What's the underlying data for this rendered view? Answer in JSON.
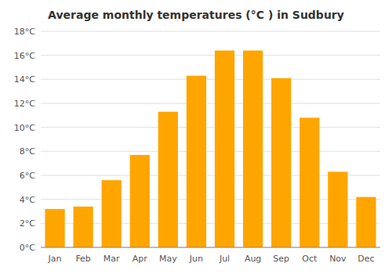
{
  "chart_data": {
    "type": "bar",
    "title": "Average monthly temperatures (°C ) in Sudbury",
    "categories": [
      "Jan",
      "Feb",
      "Mar",
      "Apr",
      "May",
      "Jun",
      "Jul",
      "Aug",
      "Sep",
      "Oct",
      "Nov",
      "Dec"
    ],
    "values": [
      3.2,
      3.4,
      5.6,
      7.7,
      11.3,
      14.3,
      16.4,
      16.4,
      14.1,
      10.8,
      6.3,
      4.2
    ],
    "color": "#FFA500",
    "ylim": [
      0,
      18
    ],
    "yticks": [
      {
        "value": 0,
        "label": "0°C"
      },
      {
        "value": 2,
        "label": "2°C"
      },
      {
        "value": 4,
        "label": "4°C"
      },
      {
        "value": 6,
        "label": "6°C"
      },
      {
        "value": 8,
        "label": "8°C"
      },
      {
        "value": 10,
        "label": "10°C"
      },
      {
        "value": 12,
        "label": "12°C"
      },
      {
        "value": 14,
        "label": "14°C"
      },
      {
        "value": 16,
        "label": "16°C"
      },
      {
        "value": 18,
        "label": "18°C"
      }
    ],
    "grid": true
  }
}
